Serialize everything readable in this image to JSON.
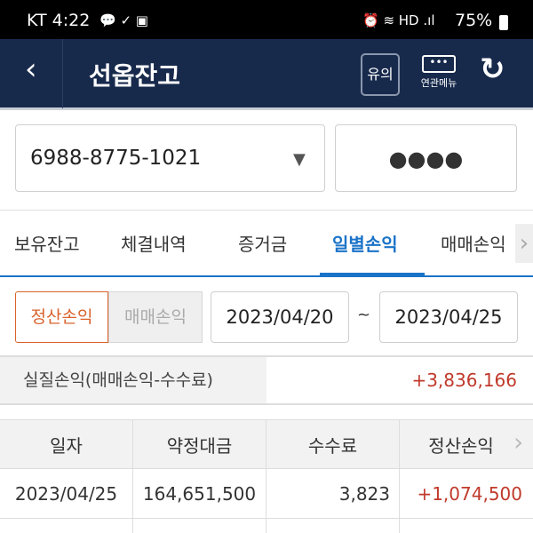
{
  "status_bar": {
    "carrier_time": "KT 4:22",
    "battery": "75%"
  },
  "header": {
    "title": "선옵잔고",
    "notice_label": "유의",
    "related_menu_label": "연관메뉴"
  },
  "account": {
    "number": "6988-8775-1021",
    "password_mask": "●●●●"
  },
  "tabs": [
    {
      "label": "보유잔고"
    },
    {
      "label": "체결내역"
    },
    {
      "label": "증거금"
    },
    {
      "label": "일별손익",
      "active": true
    },
    {
      "label": "매매손익"
    }
  ],
  "filter": {
    "toggle": [
      {
        "label": "정산손익",
        "active": true
      },
      {
        "label": "매매손익"
      }
    ],
    "start_date": "2023/04/20",
    "separator": "~",
    "end_date": "2023/04/25"
  },
  "summary": {
    "label": "실질손익(매매손익-수수료)",
    "value": "+3,836,166"
  },
  "table": {
    "headers": [
      "일자",
      "약정대금",
      "수수료",
      "정산손익"
    ],
    "rows": [
      [
        "2023/04/25",
        "164,651,500",
        "3,823",
        "+1,074,500"
      ]
    ]
  },
  "colors": {
    "header_bg": "#182a4c",
    "accent": "#1a73c8",
    "profit": "#c0392b",
    "active_toggle": "#d9622b"
  }
}
